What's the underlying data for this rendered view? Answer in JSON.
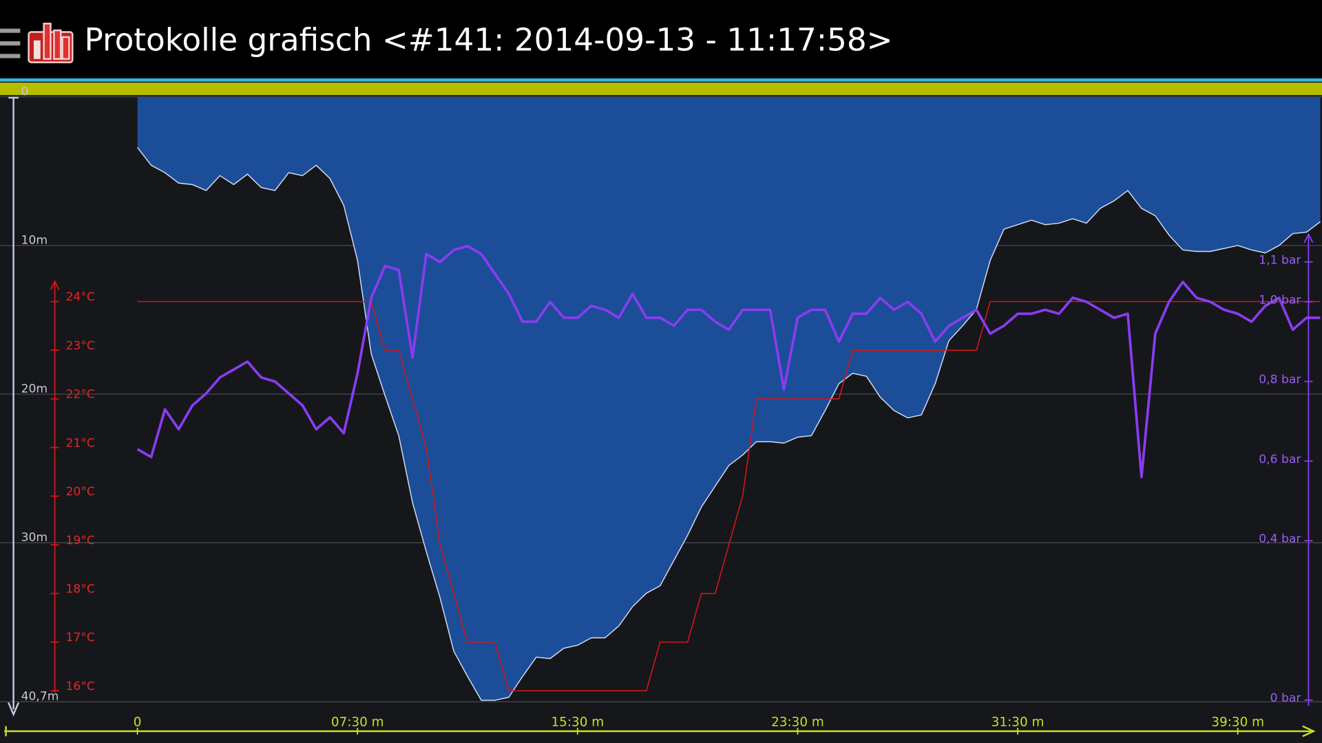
{
  "chart_data": {
    "type": "line",
    "title": "Protokolle grafisch <#141: 2014-09-13 - 11:17:58>",
    "x": [
      0,
      1,
      2,
      3,
      4,
      5,
      6,
      7,
      8,
      9,
      10,
      11,
      12,
      13,
      14,
      15,
      16,
      17,
      18,
      19,
      20,
      21,
      22,
      23,
      24,
      25,
      26,
      27,
      28,
      29,
      30,
      31,
      32,
      33,
      34,
      35,
      36,
      37,
      38,
      39,
      40,
      41,
      42,
      43,
      44,
      45,
      46,
      47,
      48,
      49,
      50,
      51,
      52,
      53,
      54,
      55,
      56,
      57,
      58,
      59,
      60,
      61,
      62,
      63,
      64,
      65,
      66,
      67,
      68,
      69,
      70,
      71,
      72,
      73,
      74,
      75,
      76,
      77,
      78,
      79,
      80,
      81,
      82,
      83,
      84,
      85,
      86
    ],
    "xlim": [
      0,
      86
    ],
    "xticks": [
      {
        "value": 0,
        "label": "0"
      },
      {
        "value": 16,
        "label": "07:30 m"
      },
      {
        "value": 32,
        "label": "15:30 m"
      },
      {
        "value": 48,
        "label": "23:30 m"
      },
      {
        "value": 64,
        "label": "31:30 m"
      },
      {
        "value": 80,
        "label": "39:30 m"
      }
    ],
    "ylim": [
      0,
      40.7
    ],
    "y_inverted": true,
    "yticks": [
      0,
      {
        "value": 10,
        "label": "10m"
      },
      {
        "value": 20,
        "label": "20m"
      },
      {
        "value": 30,
        "label": "30m"
      },
      {
        "value": 40.7,
        "label": "40,7m"
      }
    ],
    "y2lim": [
      16,
      24
    ],
    "y2ticks": [
      {
        "value": 16,
        "label": "16°C"
      },
      {
        "value": 17,
        "label": "17°C"
      },
      {
        "value": 18,
        "label": "18°C"
      },
      {
        "value": 19,
        "label": "19°C"
      },
      {
        "value": 20,
        "label": "20°C"
      },
      {
        "value": 21,
        "label": "21°C"
      },
      {
        "value": 22,
        "label": "22°C"
      },
      {
        "value": 23,
        "label": "23°C"
      },
      {
        "value": 24,
        "label": "24°C"
      }
    ],
    "y3lim": [
      0,
      1.1
    ],
    "y3ticks": [
      {
        "value": 0,
        "label": "0 bar"
      },
      {
        "value": 0.4,
        "label": "0,4 bar"
      },
      {
        "value": 0.6,
        "label": "0,6 bar"
      },
      {
        "value": 0.8,
        "label": "0,8 bar"
      },
      {
        "value": 1.0,
        "label": "1,0 bar"
      },
      {
        "value": 1.1,
        "label": "1,1 bar"
      }
    ],
    "grid": true,
    "series": [
      {
        "color": "#d8dcf0",
        "fill": "#1c4d98",
        "axis": "y",
        "values": [
          3.4,
          4.6,
          5.1,
          5.8,
          5.9,
          6.3,
          5.3,
          5.9,
          5.2,
          6.1,
          6.3,
          5.1,
          5.3,
          4.6,
          5.5,
          7.3,
          11.0,
          17.3,
          20.1,
          22.8,
          27.3,
          30.6,
          33.7,
          37.3,
          39.0,
          40.6,
          40.6,
          40.4,
          39.0,
          37.7,
          37.8,
          37.1,
          36.9,
          36.4,
          36.4,
          35.6,
          34.3,
          33.4,
          32.9,
          31.2,
          29.5,
          27.6,
          26.2,
          24.8,
          24.1,
          23.2,
          23.2,
          23.3,
          22.9,
          22.8,
          21.1,
          19.3,
          18.6,
          18.8,
          20.2,
          21.1,
          21.6,
          21.4,
          19.3,
          16.4,
          15.4,
          14.3,
          11.0,
          8.9,
          8.6,
          8.3,
          8.6,
          8.5,
          8.2,
          8.5,
          7.5,
          7.0,
          6.3,
          7.5,
          8.0,
          9.3,
          10.3,
          10.4,
          10.4,
          10.2,
          10.0,
          10.3,
          10.5,
          10.0,
          9.2,
          9.1,
          8.4
        ]
      },
      {
        "color": "#d01818",
        "axis": "y2",
        "values": [
          24,
          24,
          24,
          24,
          24,
          24,
          24,
          24,
          24,
          24,
          24,
          24,
          24,
          24,
          24,
          24,
          24,
          24,
          23,
          23,
          22,
          21,
          19,
          18,
          17,
          17,
          17,
          16,
          16,
          16,
          16,
          16,
          16,
          16,
          16,
          16,
          16,
          16,
          17,
          17,
          17,
          18,
          18,
          19,
          20,
          22,
          22,
          22,
          22,
          22,
          22,
          22,
          23,
          23,
          23,
          23,
          23,
          23,
          23,
          23,
          23,
          23,
          24,
          24,
          24,
          24,
          24,
          24,
          24,
          24,
          24,
          24,
          24,
          24,
          24,
          24,
          24,
          24,
          24,
          24,
          24,
          24,
          24,
          24,
          24,
          24,
          24
        ]
      },
      {
        "color": "#8a3cf0",
        "axis": "y3",
        "values": [
          0.63,
          0.61,
          0.73,
          0.68,
          0.74,
          0.77,
          0.81,
          0.83,
          0.85,
          0.81,
          0.8,
          0.77,
          0.74,
          0.68,
          0.71,
          0.67,
          0.82,
          1.01,
          1.09,
          1.08,
          0.86,
          1.12,
          1.1,
          1.13,
          1.14,
          1.12,
          1.07,
          1.02,
          0.95,
          0.95,
          1.0,
          0.96,
          0.96,
          0.99,
          0.98,
          0.96,
          1.02,
          0.96,
          0.96,
          0.94,
          0.98,
          0.98,
          0.95,
          0.93,
          0.98,
          0.98,
          0.98,
          0.78,
          0.96,
          0.98,
          0.98,
          0.9,
          0.97,
          0.97,
          1.01,
          0.98,
          1.0,
          0.97,
          0.9,
          0.94,
          0.96,
          0.98,
          0.92,
          0.94,
          0.97,
          0.97,
          0.98,
          0.97,
          1.01,
          1.0,
          0.98,
          0.96,
          0.97,
          0.56,
          0.92,
          1.0,
          1.05,
          1.01,
          1.0,
          0.98,
          0.97,
          0.95,
          0.99,
          1.01,
          0.93,
          0.96,
          0.96
        ]
      }
    ]
  }
}
